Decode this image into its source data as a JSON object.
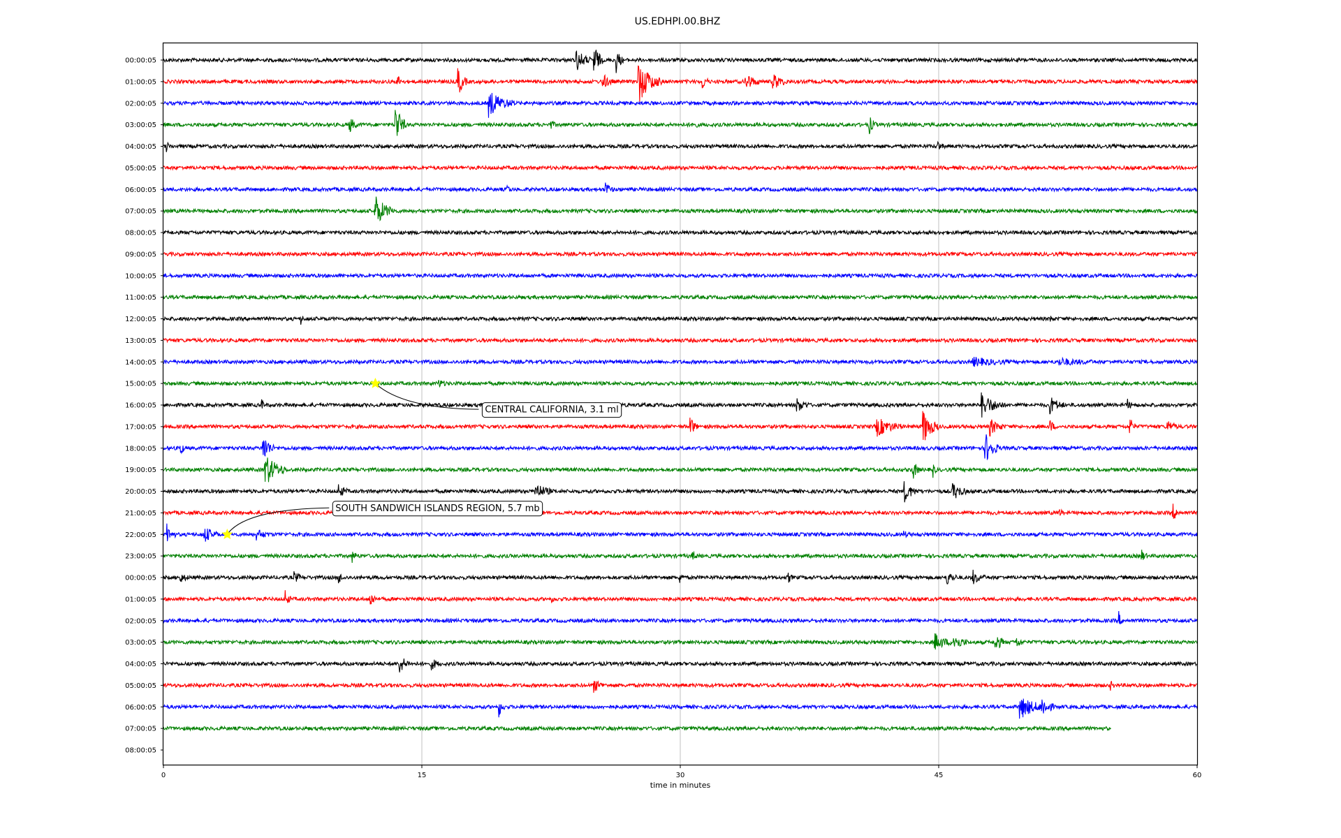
{
  "chart_data": {
    "type": "line",
    "title": "US.EDHPI.00.BHZ",
    "xlabel": "time in minutes",
    "xlim": [
      0,
      60
    ],
    "xticks": [
      0,
      15,
      30,
      45,
      60
    ],
    "grid": "vertical lines at x ticks",
    "row_colors": [
      "#000000",
      "#ff0000",
      "#0000ff",
      "#008000"
    ],
    "row_labels": [
      "00:00:05",
      "01:00:05",
      "02:00:05",
      "03:00:05",
      "04:00:05",
      "05:00:05",
      "06:00:05",
      "07:00:05",
      "08:00:05",
      "09:00:05",
      "10:00:05",
      "11:00:05",
      "12:00:05",
      "13:00:05",
      "14:00:05",
      "15:00:05",
      "16:00:05",
      "17:00:05",
      "18:00:05",
      "19:00:05",
      "20:00:05",
      "21:00:05",
      "22:00:05",
      "23:00:05",
      "00:00:05",
      "01:00:05",
      "02:00:05",
      "03:00:05",
      "04:00:05",
      "05:00:05",
      "06:00:05",
      "07:00:05",
      "08:00:05"
    ],
    "trace_end_minutes": {
      "last_row_index": 31,
      "end": 55
    },
    "bursts": [
      [
        [
          24,
          1.3,
          0.8
        ],
        [
          25,
          2.2,
          0.5
        ],
        [
          26.3,
          1.4,
          0.4
        ]
      ],
      [
        [
          13.6,
          0.8,
          0.3
        ],
        [
          17.1,
          2.0,
          0.5
        ],
        [
          25.5,
          1.0,
          0.6
        ],
        [
          27.6,
          2.6,
          1.3
        ],
        [
          31.3,
          0.8,
          0.4
        ],
        [
          33.8,
          1.1,
          0.8
        ],
        [
          35.4,
          1.0,
          0.8
        ]
      ],
      [
        [
          18.9,
          1.6,
          1.5
        ]
      ],
      [
        [
          10.8,
          1.0,
          0.5
        ],
        [
          13.5,
          2.5,
          0.6
        ],
        [
          22.5,
          0.4,
          0.3
        ],
        [
          30.7,
          0.4,
          0.4
        ],
        [
          41,
          1.0,
          0.4
        ]
      ],
      [
        [
          0.2,
          0.5,
          0.2
        ],
        [
          45,
          0.5,
          0.3
        ]
      ],
      [],
      [
        [
          20,
          0.4,
          0.2
        ],
        [
          25.7,
          0.8,
          0.4
        ]
      ],
      [
        [
          12.3,
          2.0,
          1.1
        ]
      ],
      [],
      [],
      [],
      [],
      [
        [
          8,
          0.5,
          0.2
        ],
        [
          51.5,
          0.3,
          0.2
        ]
      ],
      [],
      [
        [
          47,
          0.5,
          2.0
        ],
        [
          52,
          0.4,
          2.0
        ]
      ],
      [
        [
          16,
          0.4,
          0.5
        ]
      ],
      [
        [
          5.7,
          0.7,
          0.2
        ],
        [
          36.8,
          0.8,
          0.7
        ],
        [
          47.5,
          1.5,
          1.3
        ],
        [
          51.5,
          1.0,
          0.8
        ],
        [
          56,
          0.5,
          0.3
        ]
      ],
      [
        [
          30.6,
          1.2,
          0.4
        ],
        [
          41.4,
          1.2,
          1.5
        ],
        [
          44.1,
          2.2,
          0.9
        ],
        [
          48,
          1.0,
          0.8
        ],
        [
          51.5,
          0.7,
          0.3
        ],
        [
          56.1,
          1.3,
          0.3
        ],
        [
          58.3,
          0.7,
          0.6
        ]
      ],
      [
        [
          1,
          1.1,
          0.2
        ],
        [
          5.8,
          1.9,
          0.6
        ],
        [
          47.7,
          2.0,
          0.8
        ]
      ],
      [
        [
          5.9,
          2.1,
          1.2
        ],
        [
          43.5,
          1.3,
          0.4
        ],
        [
          44.7,
          0.6,
          0.2
        ]
      ],
      [
        [
          10.2,
          0.8,
          0.5
        ],
        [
          21.6,
          1.0,
          1.0
        ],
        [
          43,
          1.3,
          0.8
        ],
        [
          45.8,
          1.2,
          0.8
        ]
      ],
      [
        [
          52,
          0.4,
          0.3
        ],
        [
          58.6,
          1.0,
          0.4
        ]
      ],
      [
        [
          0.2,
          1.2,
          0.5
        ],
        [
          2.4,
          1.0,
          0.8
        ],
        [
          5.4,
          0.6,
          0.8
        ],
        [
          43,
          0.3,
          0.3
        ]
      ],
      [
        [
          11,
          0.5,
          0.3
        ],
        [
          30.7,
          0.6,
          0.3
        ],
        [
          56.8,
          0.6,
          0.3
        ]
      ],
      [
        [
          1,
          0.5,
          0.5
        ],
        [
          7.6,
          0.6,
          0.5
        ],
        [
          10.2,
          0.6,
          0.3
        ],
        [
          30,
          0.8,
          0.2
        ],
        [
          36.3,
          0.6,
          0.2
        ],
        [
          45.5,
          0.8,
          0.6
        ],
        [
          47,
          0.8,
          0.7
        ]
      ],
      [
        [
          7.1,
          1.0,
          0.3
        ],
        [
          12,
          1.0,
          0.4
        ],
        [
          22.5,
          0.3,
          0.3
        ]
      ],
      [
        [
          55.5,
          0.6,
          0.2
        ]
      ],
      [
        [
          44.8,
          1.0,
          1.0
        ],
        [
          45.9,
          1.0,
          0.8
        ],
        [
          48.3,
          1.3,
          0.5
        ],
        [
          49.5,
          0.6,
          0.5
        ]
      ],
      [
        [
          13.7,
          1.2,
          0.6
        ],
        [
          15.6,
          0.6,
          0.5
        ]
      ],
      [
        [
          25,
          0.8,
          0.6
        ],
        [
          55,
          0.4,
          0.3
        ]
      ],
      [
        [
          19.5,
          1.1,
          0.3
        ],
        [
          49.7,
          1.5,
          1.5
        ],
        [
          51,
          1.3,
          0.7
        ]
      ],
      [],
      []
    ],
    "annotations": [
      {
        "text": "CENTRAL CALIFORNIA, 3.1 ml",
        "row": 15,
        "minute": 12.3
      },
      {
        "text": "SOUTH SANDWICH ISLANDS REGION, 5.7 mb",
        "row": 22,
        "minute": 3.7
      }
    ],
    "event_marker_color": "#ffff00"
  }
}
